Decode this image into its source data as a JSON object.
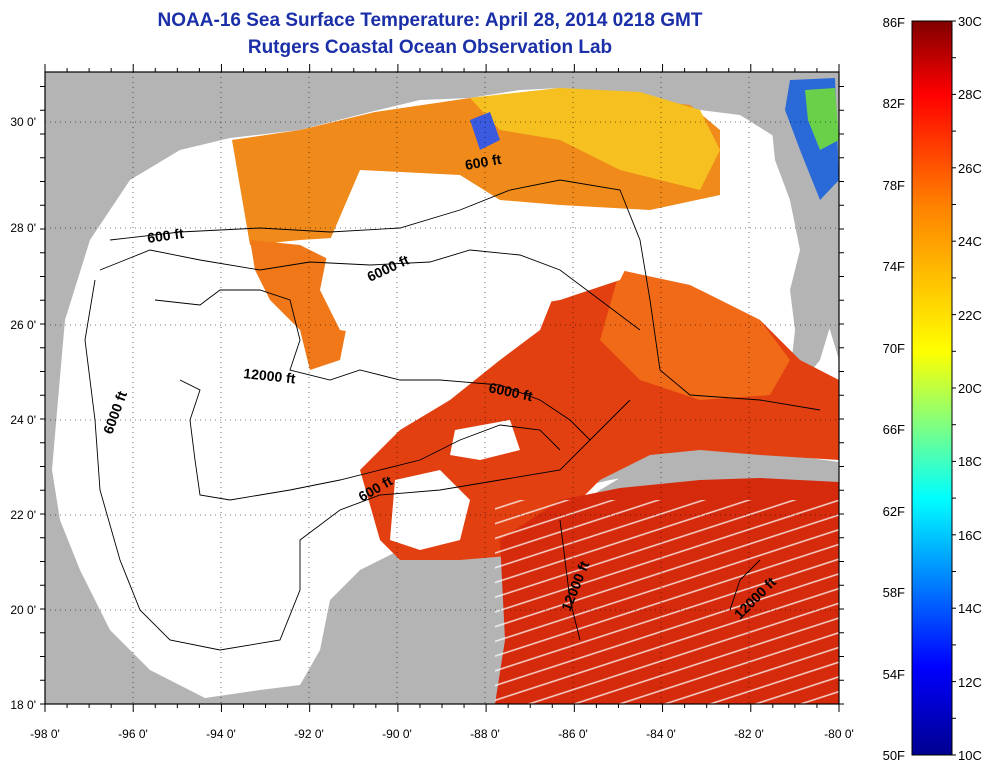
{
  "title": "NOAA-16 Sea Surface Temperature:  April 28, 2014 0218 GMT",
  "subtitle": "Rutgers Coastal Ocean Observation Lab",
  "map": {
    "lon_ticks": [
      "-98 0'",
      "-96 0'",
      "-94 0'",
      "-92 0'",
      "-90 0'",
      "-88 0'",
      "-86 0'",
      "-84 0'",
      "-82 0'",
      "-80 0'"
    ],
    "lat_ticks": [
      "18 0'",
      "20 0'",
      "22 0'",
      "24 0'",
      "26 0'",
      "28 0'",
      "30 0'"
    ],
    "lon_range": [
      -98,
      -80
    ],
    "lat_range": [
      18,
      31
    ],
    "contour_labels": [
      "600 ft",
      "600 ft",
      "6000 ft",
      "6000 ft",
      "6000 ft",
      "12000 ft",
      "600 ft",
      "12000 ft",
      "12000 ft"
    ],
    "colors": {
      "land": "#b4b4b4",
      "ocean_no_data": "#ffffff",
      "contour": "#000000"
    }
  },
  "colorbar": {
    "f_labels": [
      "86F",
      "82F",
      "78F",
      "74F",
      "70F",
      "66F",
      "62F",
      "58F",
      "54F",
      "50F"
    ],
    "c_labels": [
      "30C",
      "28C",
      "26C",
      "24C",
      "22C",
      "20C",
      "18C",
      "16C",
      "14C",
      "12C",
      "10C"
    ],
    "range_c": [
      10,
      30
    ]
  }
}
